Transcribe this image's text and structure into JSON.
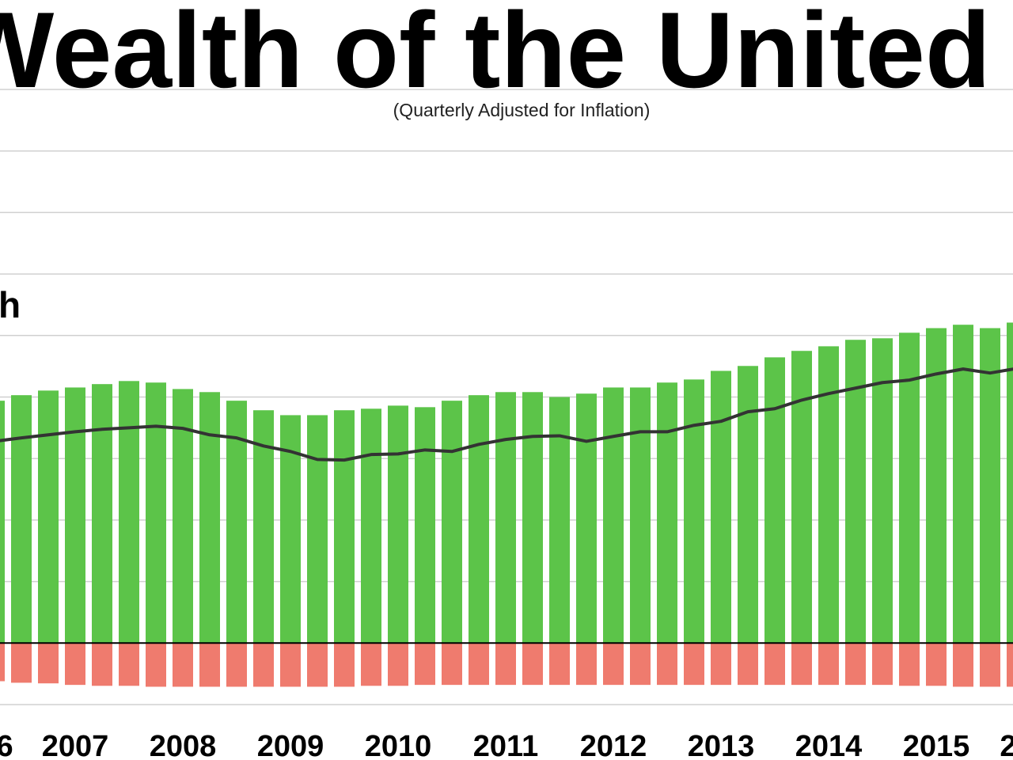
{
  "chart_data": {
    "type": "bar",
    "title": "Wealth of the United",
    "subtitle": "(Quarterly Adjusted for Inflation)",
    "annotation": "h",
    "categories": [
      "6",
      null,
      null,
      "2007",
      null,
      null,
      null,
      "2008",
      null,
      null,
      null,
      "2009",
      null,
      null,
      null,
      "2010",
      null,
      null,
      null,
      "2011",
      null,
      null,
      null,
      "2012",
      null,
      null,
      null,
      "2013",
      null,
      null,
      null,
      "2014",
      null,
      null,
      null,
      "2015",
      null,
      null,
      "2"
    ],
    "series": [
      {
        "color": "#5cc449",
        "values": [
          78.8,
          80.6,
          82.1,
          83.1,
          84.2,
          85.2,
          84.7,
          82.6,
          81.6,
          78.8,
          75.7,
          74.1,
          74.1,
          75.7,
          76.2,
          77.2,
          76.7,
          78.8,
          80.6,
          81.6,
          81.6,
          80.0,
          81.1,
          83.1,
          83.1,
          84.7,
          85.7,
          88.5,
          90.1,
          92.9,
          95.0,
          96.5,
          98.6,
          99.1,
          100.9,
          102.4,
          103.5,
          102.4,
          104.2
        ]
      },
      {
        "color": "#ef7b6e",
        "values": [
          -12.4,
          -12.9,
          -13.1,
          -13.6,
          -13.9,
          -13.9,
          -14.2,
          -14.2,
          -14.2,
          -14.2,
          -14.2,
          -14.2,
          -14.2,
          -14.2,
          -13.9,
          -13.9,
          -13.6,
          -13.6,
          -13.6,
          -13.6,
          -13.6,
          -13.6,
          -13.6,
          -13.6,
          -13.6,
          -13.6,
          -13.6,
          -13.6,
          -13.6,
          -13.6,
          -13.6,
          -13.6,
          -13.6,
          -13.6,
          -13.9,
          -13.9,
          -14.2,
          -14.2,
          -14.2
        ]
      },
      {
        "type": "line",
        "color": "#333333",
        "values": [
          65.6,
          66.7,
          67.7,
          68.7,
          69.5,
          70.0,
          70.5,
          69.8,
          67.7,
          66.7,
          64.1,
          62.3,
          59.7,
          59.5,
          61.3,
          61.5,
          62.8,
          62.3,
          64.6,
          66.2,
          67.2,
          67.4,
          65.6,
          67.2,
          68.7,
          68.7,
          70.8,
          72.1,
          75.2,
          76.2,
          79.0,
          81.1,
          82.9,
          84.7,
          85.5,
          87.5,
          89.1,
          87.8,
          89.3
        ]
      }
    ],
    "ylim": [
      -20,
      180
    ],
    "yticks": [
      -20,
      0,
      20,
      40,
      60,
      80,
      100,
      120,
      140,
      160,
      180
    ],
    "grid": true
  }
}
